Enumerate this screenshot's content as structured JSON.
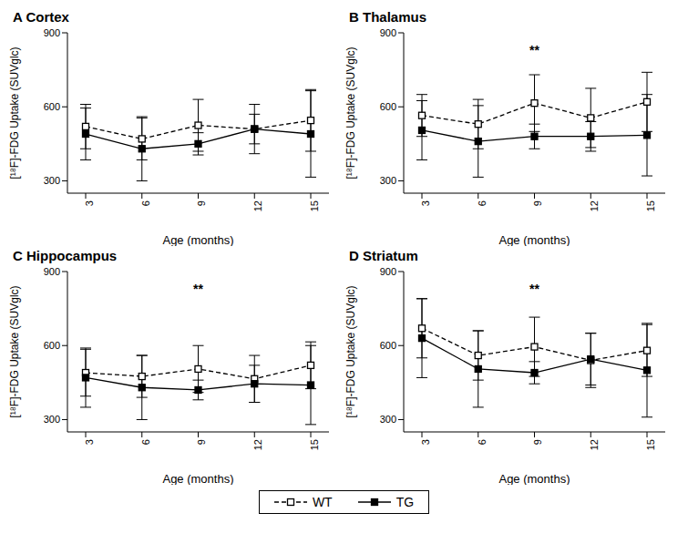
{
  "chart_data": [
    {
      "type": "line",
      "title": "A Cortex",
      "x_label": "Age (months)",
      "y_label": "[¹⁸F]-FDG Uptake (SUVglc)",
      "categories": [
        "3",
        "6",
        "9",
        "12",
        "15"
      ],
      "ylim": [
        250,
        900
      ],
      "yticks": [
        300,
        600,
        900
      ],
      "grid": false,
      "legend": "bottom",
      "series": [
        {
          "name": "WT",
          "color": "#000000",
          "marker": "square_open",
          "line_style": "dashed",
          "values": [
            520,
            470,
            525,
            510,
            545
          ],
          "errors": [
            90,
            85,
            105,
            100,
            125
          ]
        },
        {
          "name": "TG",
          "color": "#000000",
          "marker": "square",
          "line_style": "solid",
          "values": [
            490,
            430,
            450,
            510,
            490
          ],
          "errors": [
            105,
            130,
            45,
            60,
            175
          ]
        }
      ],
      "annotations": []
    },
    {
      "type": "line",
      "title": "B Thalamus",
      "x_label": "Age (months)",
      "y_label": "[¹⁸F]-FDG Uptake (SUVglc)",
      "categories": [
        "3",
        "6",
        "9",
        "12",
        "15"
      ],
      "ylim": [
        250,
        900
      ],
      "yticks": [
        300,
        600,
        900
      ],
      "grid": false,
      "legend": "bottom",
      "series": [
        {
          "name": "WT",
          "color": "#000000",
          "marker": "square_open",
          "line_style": "dashed",
          "values": [
            565,
            530,
            615,
            555,
            620
          ],
          "errors": [
            85,
            100,
            115,
            120,
            120
          ]
        },
        {
          "name": "TG",
          "color": "#000000",
          "marker": "square",
          "line_style": "solid",
          "values": [
            505,
            460,
            480,
            480,
            485
          ],
          "errors": [
            120,
            145,
            50,
            60,
            165
          ]
        }
      ],
      "annotations": [
        {
          "x": "9",
          "text": "**"
        }
      ]
    },
    {
      "type": "line",
      "title": "C Hippocampus",
      "x_label": "Age (months)",
      "y_label": "[¹⁸F]-FDG Uptake (SUVglc)",
      "categories": [
        "3",
        "6",
        "9",
        "12",
        "15"
      ],
      "ylim": [
        250,
        900
      ],
      "yticks": [
        300,
        600,
        900
      ],
      "grid": false,
      "legend": "bottom",
      "series": [
        {
          "name": "WT",
          "color": "#000000",
          "marker": "square_open",
          "line_style": "dashed",
          "values": [
            490,
            475,
            505,
            465,
            520
          ],
          "errors": [
            95,
            85,
            95,
            95,
            95
          ]
        },
        {
          "name": "TG",
          "color": "#000000",
          "marker": "square",
          "line_style": "solid",
          "values": [
            470,
            430,
            420,
            445,
            440
          ],
          "errors": [
            120,
            130,
            40,
            75,
            160
          ]
        }
      ],
      "annotations": [
        {
          "x": "9",
          "text": "**"
        }
      ]
    },
    {
      "type": "line",
      "title": "D Striatum",
      "x_label": "Age (months)",
      "y_label": "[¹⁸F]-FDG Uptake (SUVglc)",
      "categories": [
        "3",
        "6",
        "9",
        "12",
        "15"
      ],
      "ylim": [
        250,
        900
      ],
      "yticks": [
        300,
        600,
        900
      ],
      "grid": false,
      "legend": "bottom",
      "series": [
        {
          "name": "WT",
          "color": "#000000",
          "marker": "square_open",
          "line_style": "dashed",
          "values": [
            670,
            560,
            595,
            540,
            580
          ],
          "errors": [
            120,
            100,
            120,
            110,
            105
          ]
        },
        {
          "name": "TG",
          "color": "#000000",
          "marker": "square",
          "line_style": "solid",
          "values": [
            630,
            505,
            490,
            545,
            500
          ],
          "errors": [
            160,
            155,
            45,
            105,
            190
          ]
        }
      ],
      "annotations": [
        {
          "x": "9",
          "text": "**"
        }
      ]
    }
  ]
}
